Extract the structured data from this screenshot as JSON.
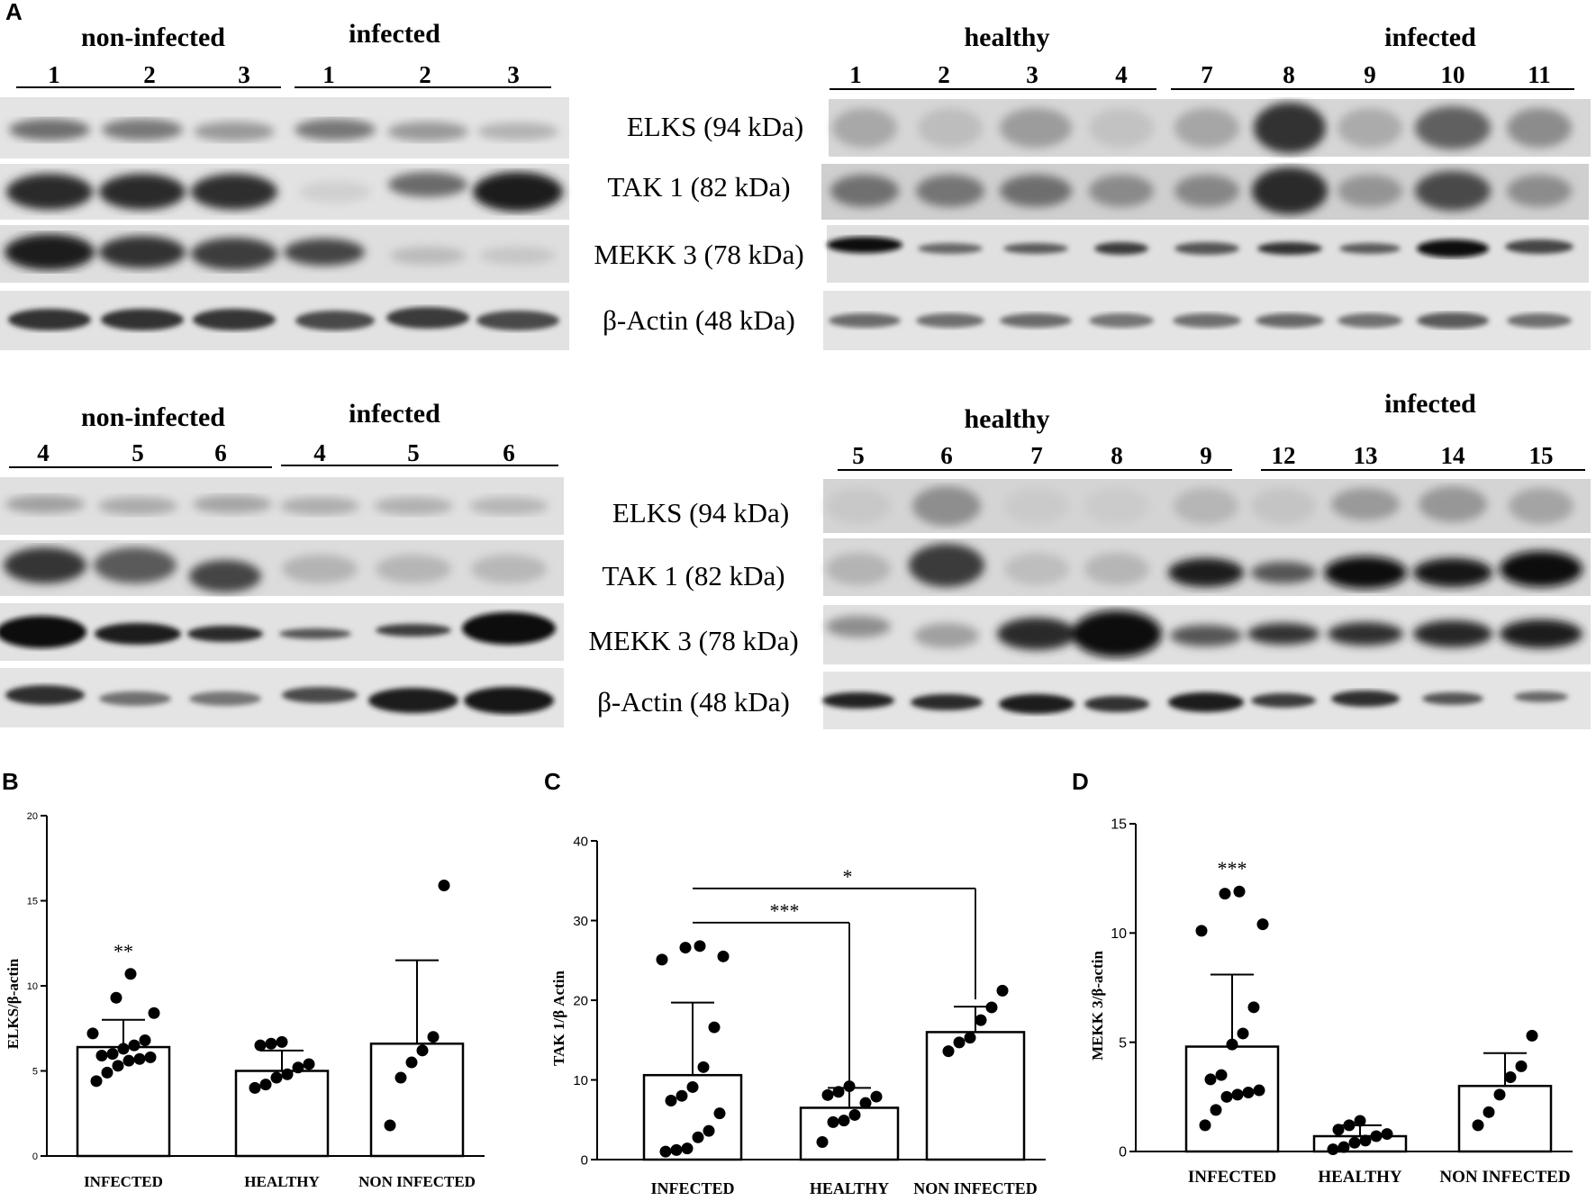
{
  "panel_letters": {
    "a": "A",
    "b": "B",
    "c": "C",
    "d": "D"
  },
  "blots": [
    {
      "group_labels": [
        {
          "text": "non-infected"
        },
        {
          "text": "infected"
        }
      ],
      "lane_labels": [
        "1",
        "2",
        "3",
        "1",
        "2",
        "3"
      ]
    },
    {
      "group_labels": [
        {
          "text": "healthy"
        },
        {
          "text": "infected"
        }
      ],
      "lane_labels": [
        "1",
        "2",
        "3",
        "4",
        "7",
        "8",
        "9",
        "10",
        "11"
      ]
    },
    {
      "group_labels": [
        {
          "text": "non-infected"
        },
        {
          "text": "infected"
        }
      ],
      "lane_labels": [
        "4",
        "5",
        "6",
        "4",
        "5",
        "6"
      ]
    },
    {
      "group_labels": [
        {
          "text": "healthy"
        },
        {
          "text": "infected"
        }
      ],
      "lane_labels": [
        "5",
        "6",
        "7",
        "8",
        "9",
        "12",
        "13",
        "14",
        "15"
      ]
    }
  ],
  "protein_labels": [
    "ELKS (94 kDa)",
    "TAK 1 (82 kDa)",
    "MEKK 3 (78 kDa)",
    "β-Actin (48 kDa)"
  ],
  "chart_data": [
    {
      "type": "bar",
      "panel": "B",
      "ylabel": "ELKS/β-actin",
      "ylim": [
        0,
        20
      ],
      "yticks": [
        0,
        5,
        10,
        15,
        20
      ],
      "categories": [
        "INFECTED",
        "HEALTHY",
        "NON INFECTED"
      ],
      "means": [
        6.4,
        5.0,
        6.6
      ],
      "errors": [
        1.6,
        1.2,
        4.9
      ],
      "points": [
        [
          4.4,
          4.9,
          5.3,
          5.6,
          5.7,
          5.8,
          5.9,
          6.0,
          6.3,
          6.5,
          6.8,
          7.2,
          8.4,
          9.3,
          10.7
        ],
        [
          4.0,
          4.2,
          4.6,
          4.8,
          5.2,
          5.4,
          6.5,
          6.6,
          6.7
        ],
        [
          1.8,
          4.6,
          5.5,
          6.2,
          7.0,
          15.9
        ]
      ],
      "significance": [
        "**",
        "",
        ""
      ]
    },
    {
      "type": "bar",
      "panel": "C",
      "ylabel": "TAK 1/β Actin",
      "ylim": [
        0,
        40
      ],
      "yticks": [
        0,
        10,
        20,
        30,
        40
      ],
      "categories": [
        "INFECTED",
        "HEALTHY",
        "NON INFECTED"
      ],
      "means": [
        10.6,
        6.5,
        16.0
      ],
      "errors": [
        9.1,
        2.5,
        3.2
      ],
      "points": [
        [
          1.0,
          1.2,
          1.4,
          2.8,
          3.6,
          5.8,
          7.4,
          8.0,
          9.1,
          11.6,
          16.6,
          25.1,
          25.5,
          26.6,
          26.8
        ],
        [
          2.2,
          4.7,
          4.9,
          5.6,
          7.1,
          7.9,
          8.1,
          8.5,
          9.2
        ],
        [
          13.6,
          14.7,
          15.3,
          17.5,
          19.1,
          21.2
        ]
      ],
      "brackets": [
        {
          "from": "INFECTED",
          "to": "HEALTHY",
          "label": "***"
        },
        {
          "from": "INFECTED",
          "to": "NON INFECTED",
          "label": "*"
        }
      ]
    },
    {
      "type": "bar",
      "panel": "D",
      "ylabel": "MEKK 3/β-actin",
      "ylim": [
        0,
        15
      ],
      "yticks": [
        0,
        5,
        10,
        15
      ],
      "categories": [
        "INFECTED",
        "HEALTHY",
        "NON INFECTED"
      ],
      "means": [
        4.8,
        0.7,
        3.0
      ],
      "errors": [
        3.3,
        0.5,
        1.5
      ],
      "points": [
        [
          1.2,
          1.9,
          2.5,
          2.6,
          2.7,
          2.8,
          3.3,
          3.5,
          4.9,
          5.4,
          6.6,
          10.1,
          10.4,
          11.8,
          11.9
        ],
        [
          0.1,
          0.2,
          0.4,
          0.5,
          0.7,
          0.8,
          1.0,
          1.2,
          1.4
        ],
        [
          1.2,
          1.8,
          2.6,
          3.4,
          3.9,
          5.3
        ]
      ],
      "significance": [
        "***",
        "",
        ""
      ]
    }
  ]
}
